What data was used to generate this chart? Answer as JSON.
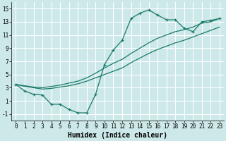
{
  "bg_color": "#cce8e8",
  "grid_color": "#ffffff",
  "line_color": "#1a7a6a",
  "xlabel": "Humidex (Indice chaleur)",
  "xlim": [
    -0.5,
    23.5
  ],
  "ylim": [
    -2,
    16
  ],
  "xticks": [
    0,
    1,
    2,
    3,
    4,
    5,
    6,
    7,
    8,
    9,
    10,
    11,
    12,
    13,
    14,
    15,
    16,
    17,
    18,
    19,
    20,
    21,
    22,
    23
  ],
  "yticks": [
    -1,
    1,
    3,
    5,
    7,
    9,
    11,
    13,
    15
  ],
  "line1_x": [
    0,
    1,
    2,
    3,
    4,
    5,
    6,
    7,
    8,
    9,
    10,
    11,
    12,
    13,
    14,
    15,
    16,
    17,
    18,
    19,
    20,
    21,
    22,
    23
  ],
  "line1_y": [
    3.5,
    2.5,
    2.0,
    1.9,
    0.5,
    0.5,
    -0.3,
    -0.8,
    -0.8,
    2.0,
    6.5,
    8.7,
    10.2,
    13.5,
    14.3,
    14.8,
    14.0,
    13.3,
    13.3,
    12.0,
    11.5,
    13.0,
    13.2,
    13.5
  ],
  "line2_x": [
    0,
    1,
    2,
    3,
    4,
    5,
    6,
    7,
    8,
    9,
    10,
    11,
    12,
    13,
    14,
    15,
    16,
    17,
    18,
    19,
    20,
    21,
    22,
    23
  ],
  "line2_y": [
    3.5,
    3.3,
    3.1,
    3.0,
    3.2,
    3.4,
    3.7,
    4.0,
    4.5,
    5.2,
    6.0,
    6.7,
    7.3,
    8.2,
    9.0,
    9.8,
    10.5,
    11.0,
    11.5,
    11.8,
    12.2,
    12.8,
    13.0,
    13.5
  ],
  "line3_x": [
    0,
    1,
    2,
    3,
    4,
    5,
    6,
    7,
    8,
    9,
    10,
    11,
    12,
    13,
    14,
    15,
    16,
    17,
    18,
    19,
    20,
    21,
    22,
    23
  ],
  "line3_y": [
    3.5,
    3.2,
    3.0,
    2.8,
    2.9,
    3.1,
    3.3,
    3.6,
    4.0,
    4.5,
    5.0,
    5.5,
    6.0,
    6.8,
    7.5,
    8.2,
    8.8,
    9.3,
    9.8,
    10.2,
    10.7,
    11.2,
    11.7,
    12.2
  ]
}
